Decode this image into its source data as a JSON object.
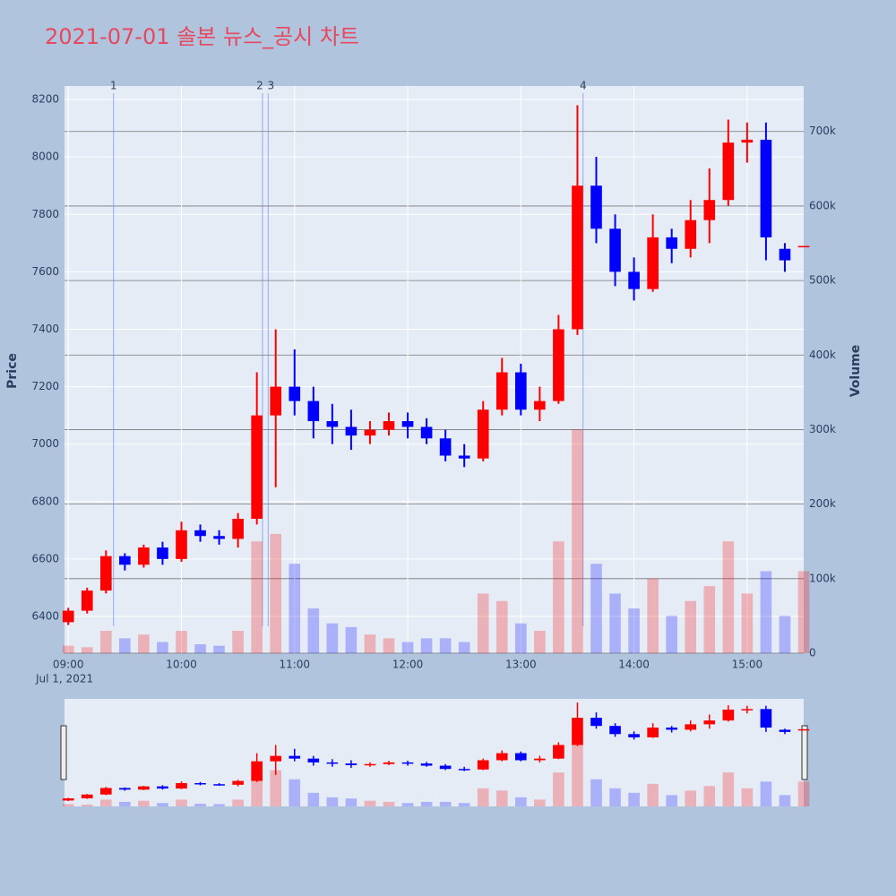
{
  "chart_data": {
    "type": "candlestick",
    "title": "2021-07-01 솔본 뉴스_공시 차트",
    "y_title": "Price",
    "y2_title": "Volume",
    "x_date_label": "Jul 1, 2021",
    "x": [
      "09:00",
      "09:10",
      "09:20",
      "09:30",
      "09:40",
      "09:50",
      "10:00",
      "10:10",
      "10:20",
      "10:30",
      "10:40",
      "10:50",
      "11:00",
      "11:10",
      "11:20",
      "11:30",
      "11:40",
      "11:50",
      "12:00",
      "12:10",
      "12:20",
      "12:30",
      "12:40",
      "12:50",
      "13:00",
      "13:10",
      "13:20",
      "13:30",
      "13:40",
      "13:50",
      "14:00",
      "14:10",
      "14:20",
      "14:30",
      "14:40",
      "14:50",
      "15:00",
      "15:10",
      "15:20",
      "15:30"
    ],
    "open": [
      6380,
      6420,
      6490,
      6610,
      6580,
      6640,
      6600,
      6700,
      6680,
      6670,
      6740,
      7100,
      7200,
      7150,
      7080,
      7060,
      7030,
      7050,
      7080,
      7060,
      7020,
      6960,
      6950,
      7120,
      7250,
      7120,
      7150,
      7400,
      7900,
      7750,
      7600,
      7540,
      7720,
      7680,
      7780,
      7850,
      8050,
      8060,
      7680,
      7690
    ],
    "high": [
      6430,
      6500,
      6630,
      6620,
      6650,
      6660,
      6730,
      6720,
      6700,
      6760,
      7250,
      7400,
      7330,
      7200,
      7140,
      7120,
      7080,
      7110,
      7110,
      7090,
      7050,
      7000,
      7150,
      7300,
      7280,
      7200,
      7450,
      8180,
      8000,
      7800,
      7650,
      7800,
      7750,
      7850,
      7960,
      8130,
      8120,
      8120,
      7700,
      7690
    ],
    "low": [
      6370,
      6410,
      6480,
      6560,
      6570,
      6580,
      6590,
      6660,
      6650,
      6640,
      6720,
      6850,
      7100,
      7020,
      7000,
      6980,
      7000,
      7030,
      7020,
      7000,
      6940,
      6920,
      6940,
      7100,
      7100,
      7080,
      7140,
      7380,
      7700,
      7550,
      7500,
      7530,
      7630,
      7650,
      7700,
      7830,
      7980,
      7640,
      7600,
      7690
    ],
    "close": [
      6420,
      6490,
      6610,
      6580,
      6640,
      6600,
      6700,
      6680,
      6670,
      6740,
      7100,
      7200,
      7150,
      7080,
      7060,
      7030,
      7050,
      7080,
      7060,
      7020,
      6960,
      6950,
      7120,
      7250,
      7120,
      7150,
      7400,
      7900,
      7750,
      7600,
      7540,
      7720,
      7680,
      7780,
      7850,
      8050,
      8060,
      7720,
      7640,
      7690
    ],
    "volume": [
      10000,
      8000,
      30000,
      20000,
      25000,
      15000,
      30000,
      12000,
      10000,
      30000,
      150000,
      160000,
      120000,
      60000,
      40000,
      35000,
      25000,
      20000,
      15000,
      20000,
      20000,
      15000,
      80000,
      70000,
      40000,
      30000,
      150000,
      300000,
      120000,
      80000,
      60000,
      100000,
      50000,
      70000,
      90000,
      150000,
      80000,
      110000,
      50000,
      110000
    ],
    "increasing_color": "#ff0000",
    "decreasing_color": "#0000ff",
    "xlim": [
      "08:58",
      "15:30"
    ],
    "xticks": [
      "09:00",
      "10:00",
      "11:00",
      "12:00",
      "13:00",
      "14:00",
      "15:00"
    ],
    "ylim": [
      6272,
      8247
    ],
    "yticks": [
      6400,
      6600,
      6800,
      7000,
      7200,
      7400,
      7600,
      7800,
      8000,
      8200
    ],
    "y2lim": [
      0,
      761000
    ],
    "y2ticks": [
      0,
      {
        "value": 100000,
        "label": "100k"
      },
      {
        "value": 200000,
        "label": "200k"
      },
      {
        "value": 300000,
        "label": "300k"
      },
      {
        "value": 400000,
        "label": "400k"
      },
      {
        "value": 500000,
        "label": "500k"
      },
      {
        "value": 600000,
        "label": "600k"
      },
      {
        "value": 700000,
        "label": "700k"
      }
    ],
    "annotations": [
      {
        "x": "09:24",
        "label": "1"
      },
      {
        "x": "10:43",
        "label": "2"
      },
      {
        "x": "10:46",
        "label": "3"
      },
      {
        "x": "13:33",
        "label": "4"
      }
    ],
    "grid": true
  }
}
